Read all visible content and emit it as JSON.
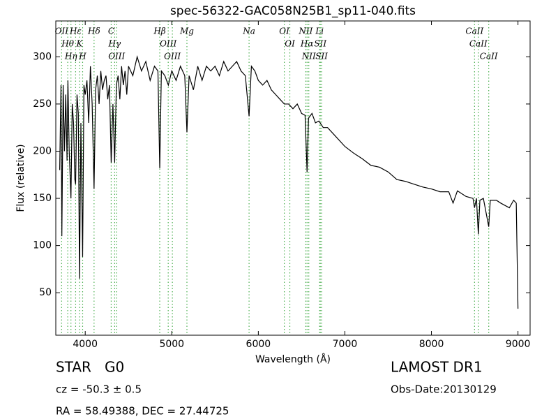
{
  "chart_data": {
    "type": "line",
    "title": "spec-56322-GAC058N25B1_sp11-040.fits",
    "x_label": "Wavelength (Å)",
    "y_label": "Flux (relative)",
    "xlim": [
      3660,
      9140
    ],
    "ylim": [
      5,
      338
    ],
    "xticks": [
      4000,
      5000,
      6000,
      7000,
      8000,
      9000
    ],
    "yticks": [
      50,
      100,
      150,
      200,
      250,
      300
    ],
    "series": [
      {
        "name": "spectrum",
        "color": "#000000",
        "x": [
          3705,
          3720,
          3730,
          3745,
          3760,
          3775,
          3790,
          3800,
          3815,
          3835,
          3850,
          3865,
          3880,
          3889,
          3905,
          3920,
          3934,
          3950,
          3970,
          3985,
          4000,
          4020,
          4040,
          4060,
          4080,
          4102,
          4120,
          4140,
          4160,
          4180,
          4200,
          4220,
          4240,
          4260,
          4280,
          4300,
          4320,
          4340,
          4360,
          4380,
          4400,
          4420,
          4440,
          4460,
          4480,
          4500,
          4550,
          4600,
          4650,
          4700,
          4750,
          4800,
          4840,
          4861,
          4880,
          4920,
          4960,
          5000,
          5050,
          5100,
          5150,
          5175,
          5200,
          5250,
          5300,
          5350,
          5400,
          5450,
          5500,
          5550,
          5600,
          5650,
          5700,
          5750,
          5800,
          5850,
          5893,
          5920,
          5960,
          6000,
          6050,
          6100,
          6150,
          6200,
          6250,
          6300,
          6350,
          6400,
          6450,
          6500,
          6540,
          6563,
          6580,
          6620,
          6660,
          6700,
          6750,
          6800,
          6900,
          7000,
          7100,
          7200,
          7300,
          7400,
          7500,
          7600,
          7700,
          7800,
          7900,
          8000,
          8100,
          8200,
          8250,
          8300,
          8400,
          8480,
          8498,
          8520,
          8542,
          8560,
          8600,
          8662,
          8680,
          8750,
          8800,
          8900,
          8950,
          8980,
          9000
        ],
        "values": [
          180,
          270,
          110,
          270,
          200,
          260,
          190,
          275,
          200,
          150,
          250,
          230,
          170,
          165,
          260,
          240,
          65,
          230,
          88,
          270,
          260,
          275,
          230,
          290,
          250,
          160,
          265,
          280,
          250,
          285,
          265,
          275,
          280,
          255,
          270,
          188,
          250,
          188,
          270,
          280,
          255,
          290,
          270,
          285,
          260,
          290,
          280,
          300,
          285,
          295,
          275,
          290,
          285,
          182,
          285,
          280,
          270,
          285,
          275,
          290,
          280,
          220,
          280,
          265,
          290,
          275,
          290,
          285,
          290,
          280,
          295,
          285,
          290,
          295,
          285,
          280,
          237,
          290,
          285,
          275,
          270,
          275,
          265,
          260,
          255,
          250,
          250,
          245,
          250,
          240,
          238,
          178,
          235,
          240,
          230,
          232,
          225,
          225,
          215,
          205,
          198,
          192,
          185,
          183,
          178,
          170,
          168,
          165,
          162,
          160,
          157,
          157,
          145,
          158,
          152,
          150,
          140,
          150,
          112,
          148,
          150,
          120,
          148,
          148,
          145,
          140,
          148,
          145,
          33
        ]
      }
    ],
    "lines": [
      {
        "wavelength": 3727,
        "label": "OII"
      },
      {
        "wavelength": 3798,
        "label": "Hθ"
      },
      {
        "wavelength": 3835,
        "label": "Hη"
      },
      {
        "wavelength": 3889,
        "label": "Hε"
      },
      {
        "wavelength": 3934,
        "label": "K"
      },
      {
        "wavelength": 3970,
        "label": "H"
      },
      {
        "wavelength": 4102,
        "label": "Hδ"
      },
      {
        "wavelength": 4300,
        "label": "C"
      },
      {
        "wavelength": 4340,
        "label": "Hγ"
      },
      {
        "wavelength": 4363,
        "label": "OIII"
      },
      {
        "wavelength": 4861,
        "label": "Hβ"
      },
      {
        "wavelength": 4959,
        "label": "OIII"
      },
      {
        "wavelength": 5007,
        "label": "OIII"
      },
      {
        "wavelength": 5175,
        "label": "Mg"
      },
      {
        "wavelength": 5893,
        "label": "Na"
      },
      {
        "wavelength": 6300,
        "label": "OI"
      },
      {
        "wavelength": 6364,
        "label": "OI"
      },
      {
        "wavelength": 6548,
        "label": "NII"
      },
      {
        "wavelength": 6563,
        "label": "Hα"
      },
      {
        "wavelength": 6583,
        "label": "NII"
      },
      {
        "wavelength": 6708,
        "label": "Li"
      },
      {
        "wavelength": 6716,
        "label": "SII"
      },
      {
        "wavelength": 6731,
        "label": "SII"
      },
      {
        "wavelength": 8498,
        "label": "CaII"
      },
      {
        "wavelength": 8542,
        "label": "CaII"
      },
      {
        "wavelength": 8662,
        "label": "CaII"
      }
    ],
    "line_color": "#4caf50",
    "info": {
      "class": "STAR   G0",
      "cz": "cz = -50.3 ± 0.5",
      "coords": "RA = 58.49388, DEC = 27.44725",
      "survey": "LAMOST DR1",
      "date": "Obs-Date:20130129"
    }
  }
}
